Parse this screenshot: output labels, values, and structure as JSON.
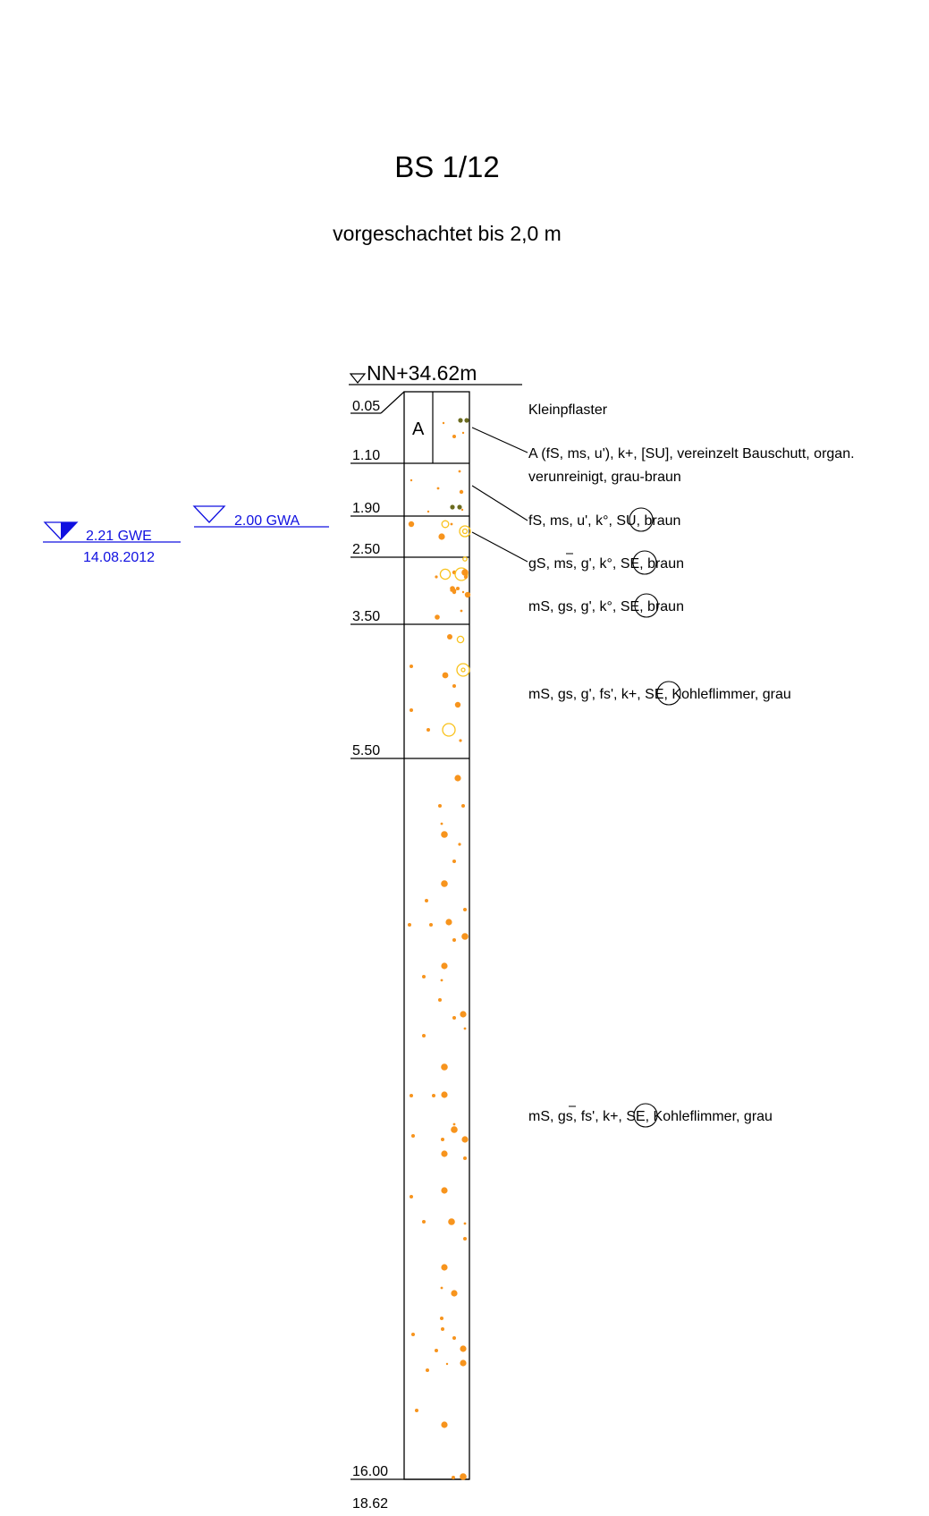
{
  "title": "BS 1/12",
  "subtitle": "vorgeschachtet bis 2,0 m",
  "elevation_label": "NN+34.62m",
  "column_label": "A",
  "layers": [
    {
      "bottom": "0.05",
      "description": "Kleinpflaster"
    },
    {
      "bottom": "1.10",
      "description_lines": [
        "A (fS, ms, u'), k+, [SU], vereinzelt Bauschutt, organ.",
        "verunreinigt, grau-braun"
      ]
    },
    {
      "bottom": "1.90",
      "description_pre": "fS, ms, u', k°, ",
      "soil_group": "SU",
      "description_post": ", braun"
    },
    {
      "bottom": "2.50",
      "description_pre_a": "gS, m",
      "description_pre_b": "s",
      "description_pre_c": ", g', k°, ",
      "soil_group": "SE",
      "description_post": ", braun"
    },
    {
      "bottom": "3.50",
      "description_pre": "mS, gs, g', k°, ",
      "soil_group": "SE",
      "description_post": ", braun"
    },
    {
      "bottom": "5.50",
      "description_pre": "mS, gs, g', fs', k+, ",
      "soil_group": "SE",
      "description_post": ", Kohleflimmer, grau"
    },
    {
      "bottom": "16.00",
      "description_pre_a": "mS, g",
      "description_pre_b": "s",
      "description_pre_c": ", fs', k+, ",
      "soil_group": "SE",
      "description_post": ", Kohleflimmer, grau"
    }
  ],
  "final_depth": "18.62",
  "groundwater": {
    "gwa_label": "2.00 GWA",
    "gwe_label": "2.21 GWE",
    "gwe_date": "14.08.2012"
  },
  "colors": {
    "grain_orange": "#f7941d",
    "grain_yellow": "#f9c21b",
    "grain_olive": "#6b6b1f",
    "groundwater_blue": "#1010e0"
  }
}
